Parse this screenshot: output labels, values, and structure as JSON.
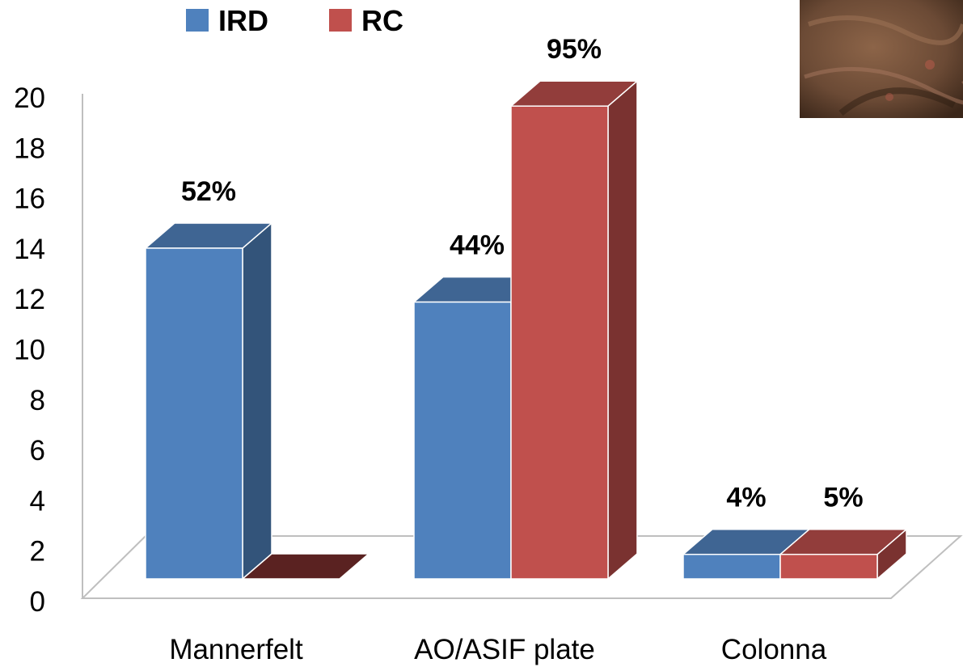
{
  "chart_data": {
    "type": "bar",
    "style": "3d-clustered-column",
    "categories": [
      "Mannerfelt",
      "AO/ASIF plate",
      "Colonna"
    ],
    "series": [
      {
        "name": "IRD",
        "values": [
          13.5,
          11.3,
          1.0
        ],
        "labels": [
          "52%",
          "44%",
          "4%"
        ],
        "color": "#4f81bd",
        "top_color": "#3f6593",
        "side_color": "#33547a"
      },
      {
        "name": "RC",
        "values": [
          0,
          19.3,
          1.0
        ],
        "labels": [
          "",
          "95%",
          "5%"
        ],
        "color": "#c0504d",
        "top_color": "#923d3b",
        "side_color": "#7a3230"
      }
    ],
    "yticks": [
      "0",
      "2",
      "4",
      "6",
      "8",
      "10",
      "12",
      "14",
      "16",
      "18",
      "20"
    ],
    "ylim": [
      0,
      20
    ],
    "legend_position": "top-left",
    "grid": false
  },
  "photo": {
    "icon": "hand-photo-thumbnail",
    "colors": [
      "#6b4a35",
      "#8c6448",
      "#3a2619"
    ]
  }
}
